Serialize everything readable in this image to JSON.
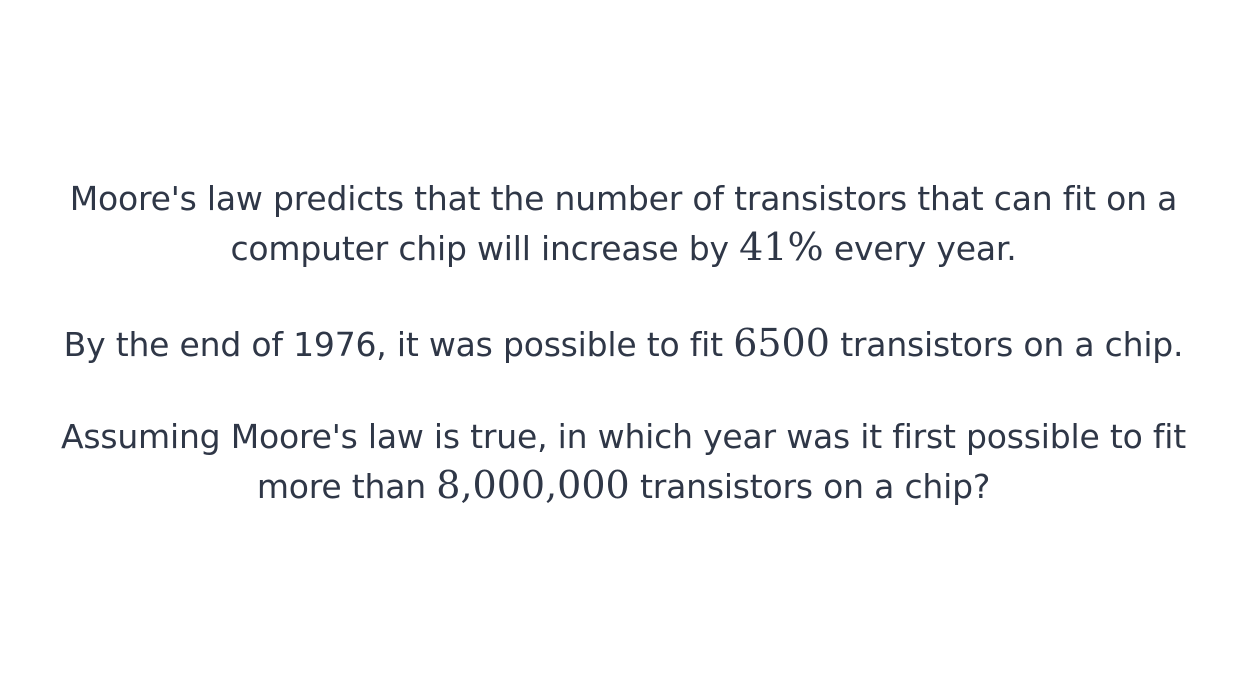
{
  "paragraph_1": {
    "line_1": "Moore's law predicts that the number of transistors that can fit on a",
    "line_2_before": "computer chip will increase by ",
    "line_2_math": "41%",
    "line_2_after": " every year."
  },
  "paragraph_2": {
    "before": "By the end of 1976, it was possible to fit ",
    "math": "6500",
    "after": " transistors on a chip."
  },
  "paragraph_3": {
    "line_1": "Assuming Moore's law is true, in which year was it first possible to fit",
    "line_2_before": "more than ",
    "line_2_math": "8,000,000",
    "line_2_after": " transistors on a chip?"
  }
}
